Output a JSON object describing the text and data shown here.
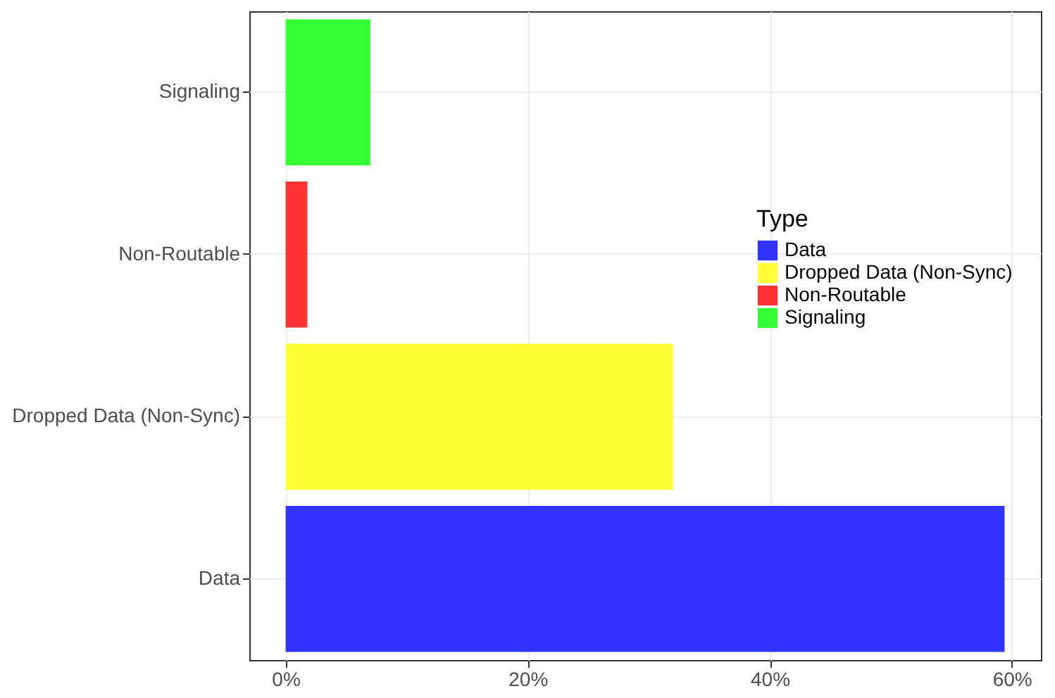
{
  "chart_data": {
    "type": "bar",
    "orientation": "horizontal",
    "categories": [
      "Signaling",
      "Non-Routable",
      "Dropped Data (Non-Sync)",
      "Data"
    ],
    "series": [
      {
        "name": "Data",
        "color": "#3333ff",
        "values": [
          null,
          null,
          null,
          59.4
        ]
      },
      {
        "name": "Dropped Data (Non-Sync)",
        "color": "#ffff33",
        "values": [
          null,
          null,
          32.0,
          null
        ]
      },
      {
        "name": "Non-Routable",
        "color": "#ff3333",
        "values": [
          null,
          1.8,
          null,
          null
        ]
      },
      {
        "name": "Signaling",
        "color": "#33ff33",
        "values": [
          7.0,
          null,
          null,
          null
        ]
      }
    ],
    "legend_title": "Type",
    "legend": "right",
    "grid": true,
    "xlim": [
      -3,
      62.4
    ],
    "xticks": [
      {
        "value": 0,
        "label": "0%"
      },
      {
        "value": 20,
        "label": "20%"
      },
      {
        "value": 40,
        "label": "40%"
      },
      {
        "value": 60,
        "label": "60%"
      }
    ]
  }
}
